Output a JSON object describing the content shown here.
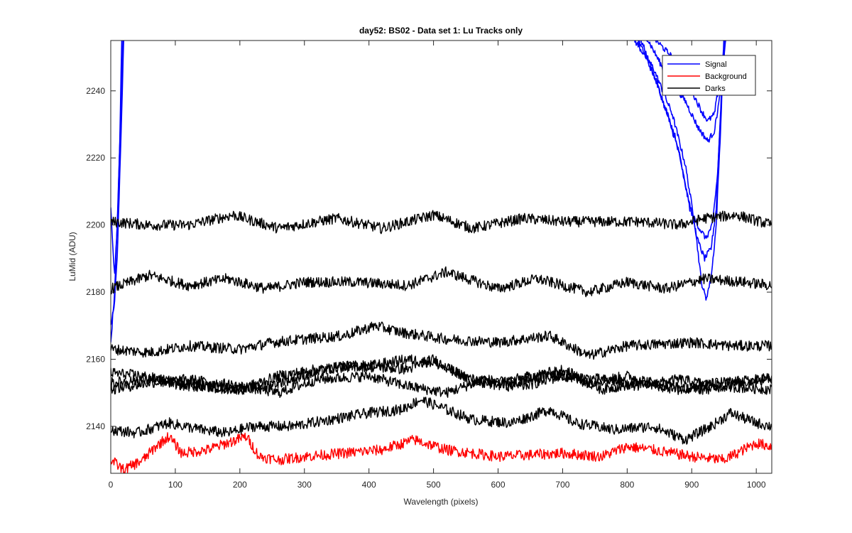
{
  "chart_data": {
    "type": "line",
    "title": "day52: BS02 - Data set 1: Lu Tracks only",
    "xlabel": "Wavelength (pixels)",
    "ylabel": "LuMid (ADU)",
    "xlim": [
      0,
      1024
    ],
    "ylim": [
      2126,
      2255
    ],
    "xticks": [
      0,
      100,
      200,
      300,
      400,
      500,
      600,
      700,
      800,
      900,
      1000
    ],
    "yticks": [
      2140,
      2160,
      2180,
      2200,
      2220,
      2240
    ],
    "grid": false,
    "legend": {
      "position": "top-right",
      "entries": [
        {
          "label": "Signal",
          "color": "#0000ff"
        },
        {
          "label": "Background",
          "color": "#ff0000"
        },
        {
          "label": "Darks",
          "color": "#000000"
        }
      ]
    },
    "series": [
      {
        "group": "Signal",
        "color": "#0000ff",
        "points": [
          [
            0,
            2170
          ],
          [
            5,
            2175
          ],
          [
            10,
            2190
          ],
          [
            14,
            2215
          ],
          [
            18,
            2240
          ],
          [
            20,
            2256
          ],
          [
            1010,
            2256
          ],
          [
            1016,
            2258
          ]
        ]
      },
      {
        "group": "Signal",
        "color": "#0000ff",
        "points": [
          [
            0,
            2165
          ],
          [
            6,
            2180
          ],
          [
            11,
            2205
          ],
          [
            15,
            2230
          ],
          [
            19,
            2256
          ]
        ]
      },
      {
        "group": "Signal",
        "color": "#0000ff",
        "points": [
          [
            0,
            2205
          ],
          [
            6,
            2185
          ],
          [
            10,
            2200
          ],
          [
            14,
            2225
          ],
          [
            17,
            2256
          ]
        ]
      },
      {
        "group": "Signal",
        "color": "#0000ff",
        "points": [
          [
            808,
            2256
          ],
          [
            840,
            2247
          ],
          [
            870,
            2233
          ],
          [
            890,
            2218
          ],
          [
            905,
            2200
          ],
          [
            915,
            2183
          ],
          [
            922,
            2178
          ],
          [
            930,
            2184
          ],
          [
            938,
            2200
          ],
          [
            945,
            2230
          ],
          [
            950,
            2256
          ]
        ]
      },
      {
        "group": "Signal",
        "color": "#0000ff",
        "points": [
          [
            815,
            2256
          ],
          [
            845,
            2243
          ],
          [
            875,
            2226
          ],
          [
            895,
            2208
          ],
          [
            910,
            2195
          ],
          [
            920,
            2190
          ],
          [
            930,
            2193
          ],
          [
            938,
            2205
          ],
          [
            946,
            2240
          ],
          [
            952,
            2256
          ]
        ]
      },
      {
        "group": "Signal",
        "color": "#0000ff",
        "points": [
          [
            820,
            2256
          ],
          [
            850,
            2240
          ],
          [
            880,
            2222
          ],
          [
            898,
            2204
          ],
          [
            912,
            2199
          ],
          [
            922,
            2196
          ],
          [
            932,
            2200
          ],
          [
            940,
            2215
          ],
          [
            948,
            2245
          ],
          [
            953,
            2256
          ]
        ]
      },
      {
        "group": "Signal",
        "color": "#0000ff",
        "points": [
          [
            830,
            2256
          ],
          [
            860,
            2245
          ],
          [
            890,
            2237
          ],
          [
            910,
            2229
          ],
          [
            925,
            2225
          ],
          [
            935,
            2228
          ],
          [
            945,
            2240
          ],
          [
            952,
            2256
          ]
        ]
      },
      {
        "group": "Signal",
        "color": "#0000ff",
        "points": [
          [
            840,
            2256
          ],
          [
            870,
            2250
          ],
          [
            900,
            2240
          ],
          [
            915,
            2234
          ],
          [
            925,
            2231
          ],
          [
            935,
            2233
          ],
          [
            945,
            2245
          ],
          [
            952,
            2256
          ]
        ]
      },
      {
        "group": "Darks",
        "color": "#000000",
        "points": [
          [
            0,
            2201
          ],
          [
            60,
            2200
          ],
          [
            120,
            2200
          ],
          [
            190,
            2203
          ],
          [
            260,
            2199
          ],
          [
            350,
            2202
          ],
          [
            420,
            2199
          ],
          [
            500,
            2203
          ],
          [
            560,
            2199
          ],
          [
            640,
            2202
          ],
          [
            700,
            2201
          ],
          [
            760,
            2201
          ],
          [
            820,
            2201
          ],
          [
            880,
            2200
          ],
          [
            920,
            2202
          ],
          [
            970,
            2203
          ],
          [
            1024,
            2200
          ]
        ]
      },
      {
        "group": "Darks",
        "color": "#000000",
        "points": [
          [
            0,
            2181
          ],
          [
            60,
            2185
          ],
          [
            120,
            2182
          ],
          [
            180,
            2184
          ],
          [
            240,
            2181
          ],
          [
            300,
            2183
          ],
          [
            380,
            2183
          ],
          [
            460,
            2182
          ],
          [
            520,
            2186
          ],
          [
            600,
            2181
          ],
          [
            660,
            2184
          ],
          [
            740,
            2180
          ],
          [
            800,
            2183
          ],
          [
            860,
            2181
          ],
          [
            920,
            2184
          ],
          [
            980,
            2183
          ],
          [
            1024,
            2182
          ]
        ]
      },
      {
        "group": "Darks",
        "color": "#000000",
        "points": [
          [
            0,
            2163
          ],
          [
            60,
            2162
          ],
          [
            120,
            2164
          ],
          [
            200,
            2163
          ],
          [
            250,
            2165
          ],
          [
            300,
            2166
          ],
          [
            360,
            2167
          ],
          [
            410,
            2170
          ],
          [
            450,
            2168
          ],
          [
            520,
            2166
          ],
          [
            600,
            2165
          ],
          [
            680,
            2167
          ],
          [
            740,
            2161
          ],
          [
            800,
            2164
          ],
          [
            900,
            2165
          ],
          [
            960,
            2164
          ],
          [
            1024,
            2164
          ]
        ]
      },
      {
        "group": "Darks",
        "color": "#000000",
        "points": [
          [
            0,
            2153
          ],
          [
            60,
            2154
          ],
          [
            120,
            2152
          ],
          [
            200,
            2151
          ],
          [
            260,
            2155
          ],
          [
            320,
            2157
          ],
          [
            380,
            2158
          ],
          [
            460,
            2157
          ],
          [
            500,
            2160
          ],
          [
            560,
            2153
          ],
          [
            620,
            2152
          ],
          [
            700,
            2157
          ],
          [
            760,
            2151
          ],
          [
            820,
            2153
          ],
          [
            880,
            2151
          ],
          [
            940,
            2153
          ],
          [
            1024,
            2154
          ]
        ]
      },
      {
        "group": "Darks",
        "color": "#000000",
        "points": [
          [
            0,
            2156
          ],
          [
            50,
            2155
          ],
          [
            100,
            2153
          ],
          [
            150,
            2152
          ],
          [
            200,
            2151
          ],
          [
            240,
            2152
          ],
          [
            300,
            2155
          ],
          [
            360,
            2158
          ],
          [
            400,
            2158
          ],
          [
            460,
            2160
          ],
          [
            500,
            2159
          ],
          [
            560,
            2154
          ],
          [
            600,
            2153
          ],
          [
            680,
            2156
          ],
          [
            740,
            2153
          ],
          [
            800,
            2155
          ],
          [
            860,
            2152
          ],
          [
            920,
            2151
          ],
          [
            980,
            2153
          ],
          [
            1024,
            2155
          ]
        ]
      },
      {
        "group": "Darks",
        "color": "#000000",
        "points": [
          [
            0,
            2151
          ],
          [
            60,
            2153
          ],
          [
            120,
            2154
          ],
          [
            200,
            2152
          ],
          [
            260,
            2150
          ],
          [
            320,
            2154
          ],
          [
            400,
            2155
          ],
          [
            460,
            2152
          ],
          [
            520,
            2150
          ],
          [
            580,
            2154
          ],
          [
            640,
            2152
          ],
          [
            700,
            2155
          ],
          [
            760,
            2154
          ],
          [
            820,
            2152
          ],
          [
            880,
            2154
          ],
          [
            940,
            2152
          ],
          [
            1024,
            2151
          ]
        ]
      },
      {
        "group": "Darks",
        "color": "#000000",
        "points": [
          [
            0,
            2139
          ],
          [
            40,
            2138
          ],
          [
            90,
            2141
          ],
          [
            140,
            2139
          ],
          [
            180,
            2138
          ],
          [
            220,
            2140
          ],
          [
            280,
            2140
          ],
          [
            340,
            2142
          ],
          [
            400,
            2144
          ],
          [
            450,
            2145
          ],
          [
            480,
            2148
          ],
          [
            520,
            2145
          ],
          [
            560,
            2142
          ],
          [
            620,
            2141
          ],
          [
            680,
            2145
          ],
          [
            720,
            2141
          ],
          [
            780,
            2139
          ],
          [
            840,
            2140
          ],
          [
            890,
            2136
          ],
          [
            930,
            2140
          ],
          [
            960,
            2144
          ],
          [
            1000,
            2141
          ],
          [
            1024,
            2140
          ]
        ]
      },
      {
        "group": "Background",
        "color": "#ff0000",
        "points": [
          [
            0,
            2130
          ],
          [
            20,
            2127
          ],
          [
            50,
            2130
          ],
          [
            70,
            2134
          ],
          [
            90,
            2137
          ],
          [
            110,
            2132
          ],
          [
            150,
            2133
          ],
          [
            180,
            2135
          ],
          [
            210,
            2137
          ],
          [
            230,
            2131
          ],
          [
            260,
            2130
          ],
          [
            300,
            2131
          ],
          [
            360,
            2132
          ],
          [
            420,
            2133
          ],
          [
            470,
            2136
          ],
          [
            520,
            2133
          ],
          [
            600,
            2131
          ],
          [
            700,
            2132
          ],
          [
            760,
            2131
          ],
          [
            800,
            2134
          ],
          [
            840,
            2133
          ],
          [
            900,
            2131
          ],
          [
            950,
            2130
          ],
          [
            1000,
            2135
          ],
          [
            1024,
            2134
          ]
        ]
      }
    ]
  }
}
